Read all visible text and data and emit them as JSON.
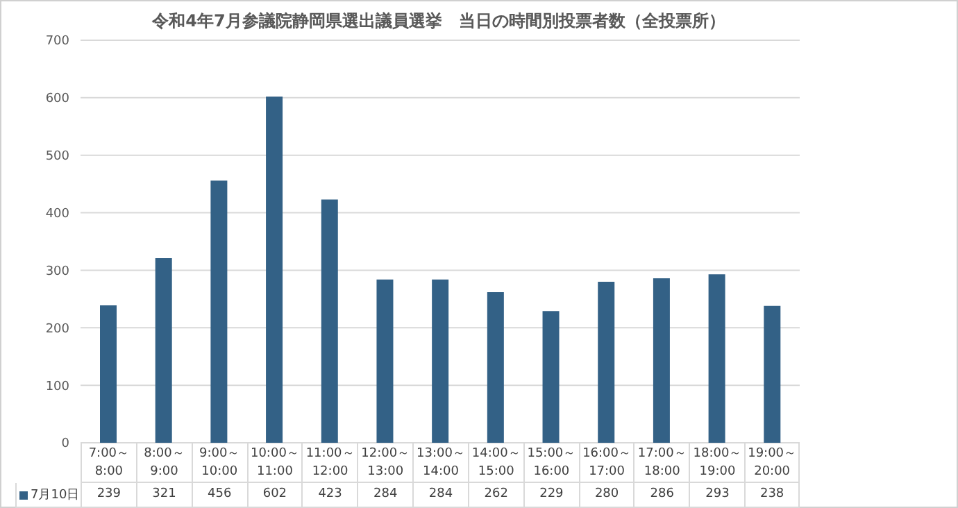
{
  "chart_data": {
    "type": "bar",
    "title": "令和4年7月参議院静岡県選出議員選挙　当日の時間別投票者数（全投票所）",
    "categories": [
      "7:00～8:00",
      "8:00～9:00",
      "9:00～10:00",
      "10:00～11:00",
      "11:00～12:00",
      "12:00～13:00",
      "13:00～14:00",
      "14:00～15:00",
      "15:00～16:00",
      "16:00～17:00",
      "17:00～18:00",
      "18:00～19:00",
      "19:00～20:00"
    ],
    "series": [
      {
        "name": "7月10日",
        "color": "#336186",
        "values": [
          239,
          321,
          456,
          602,
          423,
          284,
          284,
          262,
          229,
          280,
          286,
          293,
          238
        ]
      }
    ],
    "ylim": [
      0,
      700
    ],
    "yticks": [
      0,
      100,
      200,
      300,
      400,
      500,
      600,
      700
    ],
    "grid": "y",
    "legend": "bottom",
    "data_labels": true
  }
}
